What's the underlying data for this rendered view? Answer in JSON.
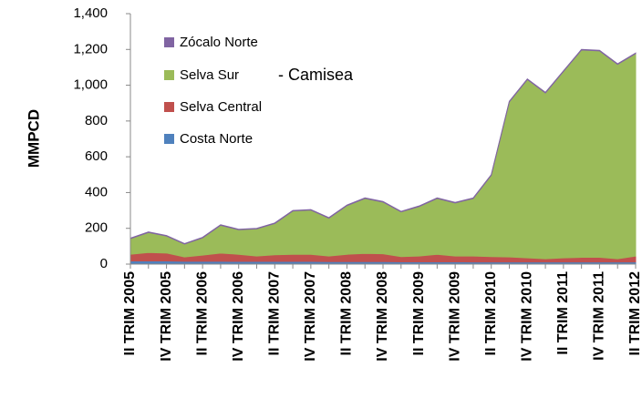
{
  "chart_data": {
    "type": "stacked_area",
    "y_label": "MMPCD",
    "annotation": "- Camisea",
    "categories": [
      "II TRIM 2005",
      null,
      "IV TRIM 2005",
      null,
      "II TRIM 2006",
      null,
      "IV TRIM 2006",
      null,
      "II TRIM 2007",
      null,
      "IV TRIM 2007",
      null,
      "II TRIM 2008",
      null,
      "IV TRIM 2008",
      null,
      "II TRIM 2009",
      null,
      "IV TRIM 2009",
      null,
      "II TRIM 2010",
      null,
      "IV TRIM 2010",
      null,
      "II TRIM 2011",
      null,
      "IV TRIM 2011",
      null,
      "II TRIM 2012"
    ],
    "series": [
      {
        "name": "Costa Norte",
        "color": "#4f81bd",
        "values": [
          18,
          18,
          18,
          16,
          16,
          16,
          15,
          15,
          15,
          15,
          15,
          14,
          14,
          14,
          14,
          13,
          13,
          13,
          13,
          12,
          12,
          12,
          12,
          12,
          12,
          12,
          12,
          12,
          12
        ]
      },
      {
        "name": "Selva Central",
        "color": "#c0504d",
        "values": [
          37,
          47,
          44,
          24,
          34,
          46,
          40,
          30,
          37,
          40,
          40,
          31,
          41,
          46,
          44,
          29,
          32,
          42,
          32,
          33,
          30,
          28,
          23,
          18,
          23,
          26,
          26,
          18,
          33
        ]
      },
      {
        "name": "Selva Sur",
        "color": "#9bbb59",
        "values": [
          87,
          112,
          95,
          72,
          97,
          155,
          137,
          152,
          175,
          242,
          247,
          212,
          272,
          307,
          289,
          250,
          277,
          312,
          297,
          322,
          455,
          867,
          997,
          927,
          1042,
          1159,
          1154,
          1087,
          1132
        ]
      },
      {
        "name": "Zócalo Norte",
        "color": "#8064a2",
        "values": [
          3,
          3,
          3,
          3,
          3,
          3,
          3,
          3,
          3,
          3,
          3,
          3,
          3,
          3,
          3,
          3,
          3,
          3,
          3,
          3,
          3,
          3,
          3,
          3,
          3,
          3,
          3,
          3,
          3
        ]
      }
    ],
    "ylim": [
      0,
      1400
    ],
    "yticks": [
      0,
      200,
      400,
      600,
      800,
      {
        "value": 1000,
        "label": "1,000"
      },
      {
        "value": 1200,
        "label": "1,200"
      },
      {
        "value": 1400,
        "label": "1,400"
      }
    ]
  }
}
